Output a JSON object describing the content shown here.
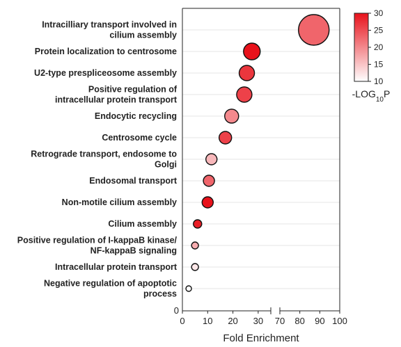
{
  "chart_data": {
    "type": "scatter",
    "xlabel": "Fold Enrichment",
    "x_axis_broken": true,
    "x_segments": [
      {
        "range": [
          0,
          35
        ],
        "ticks": [
          0,
          10,
          20,
          30
        ]
      },
      {
        "range": [
          70,
          100
        ],
        "ticks": [
          70,
          80,
          90,
          100
        ]
      }
    ],
    "y_origin_label": "0",
    "grid": "horizontal",
    "size_encodes": "gene count",
    "color_scale": {
      "title_prefix": "-LOG",
      "title_subscript": "10",
      "title_suffix": "P",
      "range": [
        10,
        30
      ],
      "ticks": [
        10,
        15,
        20,
        25,
        30
      ],
      "color_low": "#ffffff",
      "color_high": "#e8121b"
    },
    "points": [
      {
        "label_lines": [
          "Intracilliary transport involved in",
          "cilium assembly"
        ],
        "x": 87,
        "color_value": 23,
        "size": 22
      },
      {
        "label_lines": [
          "Protein localization to centrosome"
        ],
        "x": 27.5,
        "color_value": 30,
        "size": 12
      },
      {
        "label_lines": [
          "U2-type prespliceosome assembly"
        ],
        "x": 25.5,
        "color_value": 27,
        "size": 11
      },
      {
        "label_lines": [
          "Positive regulation of",
          "intracellular protein transport"
        ],
        "x": 24.5,
        "color_value": 26,
        "size": 11
      },
      {
        "label_lines": [
          "Endocytic recycling"
        ],
        "x": 19.5,
        "color_value": 20,
        "size": 10
      },
      {
        "label_lines": [
          "Centrosome cycle"
        ],
        "x": 17,
        "color_value": 26,
        "size": 9
      },
      {
        "label_lines": [
          "Retrograde transport, endosome to",
          "Golgi"
        ],
        "x": 11.5,
        "color_value": 16,
        "size": 8
      },
      {
        "label_lines": [
          "Endosomal transport"
        ],
        "x": 10.5,
        "color_value": 23,
        "size": 8
      },
      {
        "label_lines": [
          "Non-motile cilium assembly"
        ],
        "x": 10,
        "color_value": 30,
        "size": 8
      },
      {
        "label_lines": [
          "Cilium assembly"
        ],
        "x": 6,
        "color_value": 29,
        "size": 6
      },
      {
        "label_lines": [
          "Positive regulation of I-kappaB kinase/",
          "NF-kappaB signaling"
        ],
        "x": 5,
        "color_value": 17,
        "size": 5
      },
      {
        "label_lines": [
          "Intracellular protein transport"
        ],
        "x": 5,
        "color_value": 12,
        "size": 5
      },
      {
        "label_lines": [
          "Negative regulation of apoptotic",
          "process"
        ],
        "x": 2.5,
        "color_value": 10,
        "size": 4
      }
    ]
  }
}
